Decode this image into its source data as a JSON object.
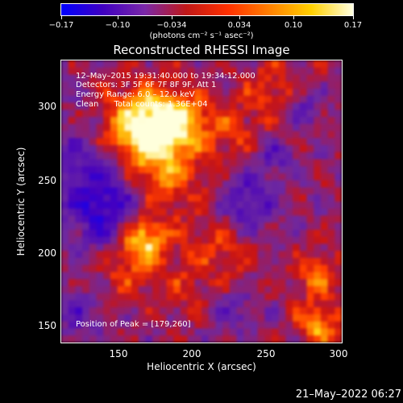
{
  "colorbar": {
    "ticks": [
      "−0.17",
      "−0.10",
      "−0.034",
      "0.034",
      "0.10",
      "0.17"
    ],
    "units": "(photons cm⁻² s⁻¹ asec⁻²)"
  },
  "title": "Reconstructed RHESSI Image",
  "info": {
    "line1": "12–May–2015 19:31:40.000 to 19:34:12.000",
    "line2": "Detectors: 3F 5F 6F 7F 8F 9F, Att 1",
    "line3": "Energy Range: 6.0 – 12.0 keV",
    "line4": "Clean      Total counts: 1.36E+04"
  },
  "peak": "Position of Peak = [179,260]",
  "axes": {
    "xlabel": "Heliocentric X (arcsec)",
    "ylabel": "Heliocentric Y (arcsec)",
    "xticks": [
      "150",
      "200",
      "250",
      "300"
    ],
    "yticks": [
      "300",
      "250",
      "200",
      "150"
    ]
  },
  "timestamp": "21–May–2022 06:27",
  "colors": {
    "cmap": [
      "#0000ff",
      "#4000c0",
      "#7a28a8",
      "#c01818",
      "#ff3000",
      "#ff8000",
      "#ffd000",
      "#ffffe0"
    ]
  }
}
